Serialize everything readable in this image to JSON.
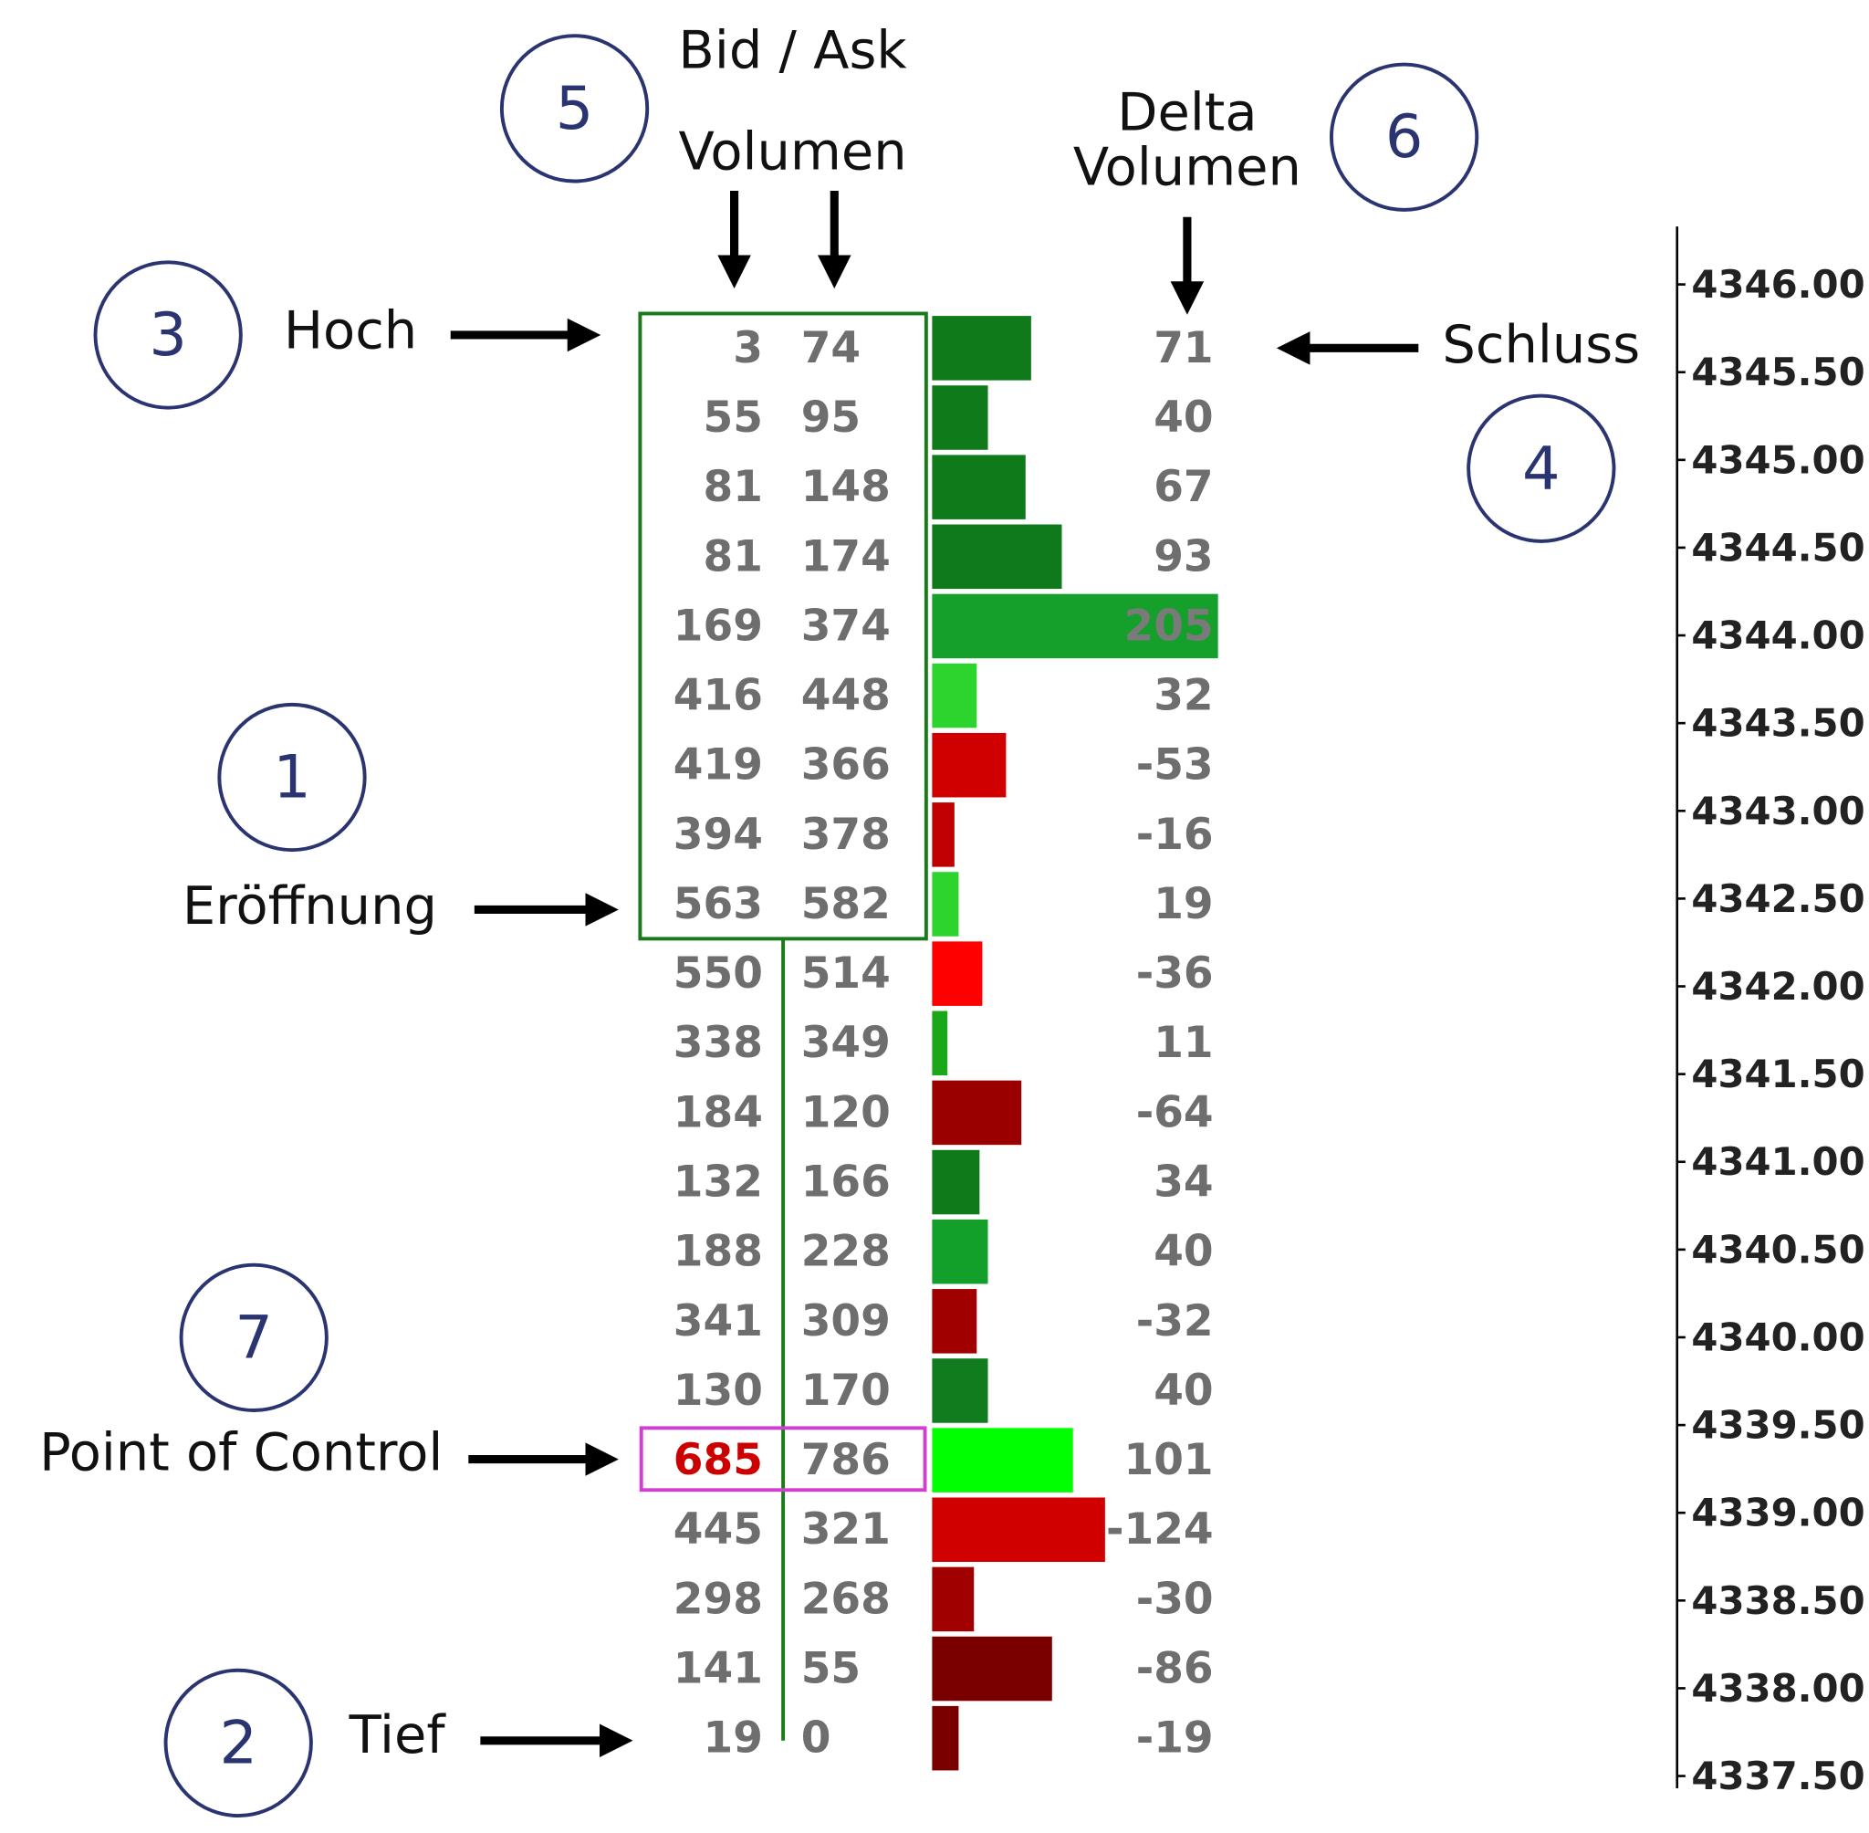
{
  "chart_data": {
    "type": "footprint",
    "bid": [
      3,
      55,
      81,
      81,
      169,
      416,
      419,
      394,
      563,
      550,
      338,
      184,
      132,
      188,
      341,
      130,
      685,
      445,
      298,
      141,
      19
    ],
    "ask": [
      74,
      95,
      148,
      174,
      374,
      448,
      366,
      378,
      582,
      514,
      349,
      120,
      166,
      228,
      309,
      170,
      786,
      321,
      268,
      55,
      0
    ],
    "delta": [
      71,
      40,
      67,
      93,
      205,
      32,
      -53,
      -16,
      19,
      -36,
      11,
      -64,
      34,
      40,
      -32,
      40,
      101,
      -124,
      -30,
      -86,
      -19
    ],
    "delta_colors": [
      "#0e7a1a",
      "#0e7a1a",
      "#0e7a1a",
      "#0f7a1c",
      "#14a02a",
      "#2ed42e",
      "#d00000",
      "#c00000",
      "#2ed42e",
      "#ff0000",
      "#1aa81a",
      "#9b0000",
      "#0e7a1a",
      "#13a02a",
      "#a00000",
      "#107c1e",
      "#00ff00",
      "#d00000",
      "#a00000",
      "#7a0000",
      "#7a0000"
    ],
    "ylim": [
      4337.43,
      4346.33
    ],
    "yticks": [
      {
        "value": 4346,
        "label": "4346.00"
      },
      {
        "value": 4345.5,
        "label": "4345.50"
      },
      {
        "value": 4345,
        "label": "4345.00"
      },
      {
        "value": 4344.5,
        "label": "4344.50"
      },
      {
        "value": 4344,
        "label": "4344.00"
      },
      {
        "value": 4343.5,
        "label": "4343.50"
      },
      {
        "value": 4343,
        "label": "4343.00"
      },
      {
        "value": 4342.5,
        "label": "4342.50"
      },
      {
        "value": 4342,
        "label": "4342.00"
      },
      {
        "value": 4341.5,
        "label": "4341.50"
      },
      {
        "value": 4341,
        "label": "4341.00"
      },
      {
        "value": 4340.5,
        "label": "4340.50"
      },
      {
        "value": 4340,
        "label": "4340.00"
      },
      {
        "value": 4339.5,
        "label": "4339.50"
      },
      {
        "value": 4339,
        "label": "4339.00"
      },
      {
        "value": 4338.5,
        "label": "4338.50"
      },
      {
        "value": 4338,
        "label": "4338.00"
      },
      {
        "value": 4337.5,
        "label": "4337.50"
      }
    ]
  },
  "headers": {
    "bid_ask": [
      "Bid / Ask",
      "Volumen"
    ],
    "delta": [
      "Delta",
      "Volumen"
    ]
  },
  "markers": [
    {
      "number": 1,
      "label": "Eröffnung"
    },
    {
      "number": 2,
      "label": "Tief"
    },
    {
      "number": 3,
      "label": "Hoch"
    },
    {
      "number": 4,
      "label": "Schluss"
    },
    {
      "number": 5
    },
    {
      "number": 6
    },
    {
      "number": 7,
      "label": "Point of Control"
    }
  ]
}
